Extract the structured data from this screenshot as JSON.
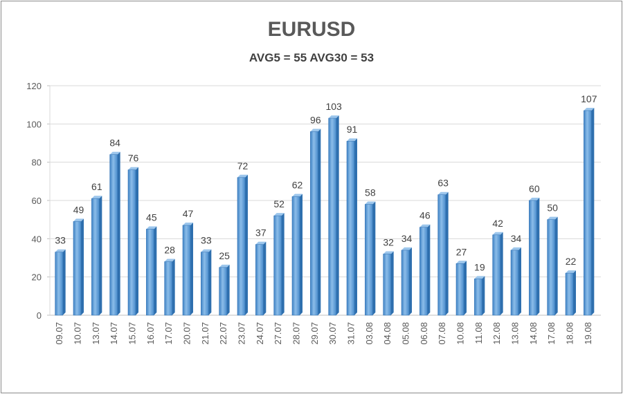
{
  "chart_data": {
    "type": "bar",
    "title": "EURUSD",
    "subtitle": "AVG5 = 55 AVG30 = 53",
    "categories": [
      "09.07",
      "10.07",
      "13.07",
      "14.07",
      "15.07",
      "16.07",
      "17.07",
      "20.07",
      "21.07",
      "22.07",
      "23.07",
      "24.07",
      "27.07",
      "28.07",
      "29.07",
      "30.07",
      "31.07",
      "03.08",
      "04.08",
      "05.08",
      "06.08",
      "07.08",
      "10.08",
      "11.08",
      "12.08",
      "13.08",
      "14.08",
      "17.08",
      "18.08",
      "19.08"
    ],
    "values": [
      33,
      49,
      61,
      84,
      76,
      45,
      28,
      47,
      33,
      25,
      72,
      37,
      52,
      62,
      96,
      103,
      91,
      58,
      32,
      34,
      46,
      63,
      27,
      19,
      42,
      34,
      60,
      50,
      22,
      107
    ],
    "ylim": [
      0,
      120
    ],
    "yticks": [
      0,
      20,
      40,
      60,
      80,
      100,
      120
    ],
    "grid": true,
    "legend": "none",
    "bar_color": "#5b9bd5",
    "bar_dark_color": "#2e6fae",
    "data_labels": true
  }
}
